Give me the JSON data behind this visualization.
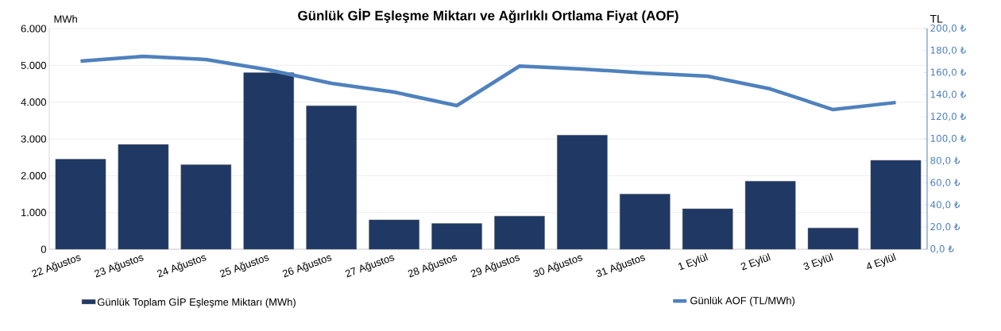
{
  "chart_data": {
    "type": "bar",
    "title": "Günlük GİP Eşleşme Miktarı ve Ağırlıklı Ortlama Fiyat (AOF)",
    "ylabel": "MWh",
    "y2label": "TL",
    "categories": [
      "22 Ağustos",
      "23 Ağustos",
      "24 Ağustos",
      "25 Ağustos",
      "26 Ağustos",
      "27 Ağustos",
      "28 Ağustos",
      "29 Ağustos",
      "30 Ağustos",
      "31 Ağustos",
      "1 Eylül",
      "2 Eylül",
      "3 Eylül",
      "4 Eylül"
    ],
    "series": [
      {
        "name": "Günlük Toplam GİP Eşleşme Miktarı (MWh)",
        "color": "#1f3864",
        "values": [
          2450,
          2850,
          2300,
          4800,
          3900,
          800,
          700,
          900,
          3100,
          1500,
          1100,
          1850,
          580,
          2420
        ]
      },
      {
        "name": "Günlük AOF (TL/MWh)",
        "type": "line",
        "axis": "y2",
        "color": "#4f81bd",
        "values": [
          170.5,
          174.8,
          172,
          162.6,
          150.4,
          142.4,
          130.2,
          166,
          163.3,
          159.7,
          156.8,
          145.3,
          126.6,
          133
        ]
      }
    ],
    "ylim": [
      0,
      6000
    ],
    "yticks": [
      {
        "value": 0,
        "label": "0"
      },
      {
        "value": 1000,
        "label": "1.000"
      },
      {
        "value": 2000,
        "label": "2.000"
      },
      {
        "value": 3000,
        "label": "3.000"
      },
      {
        "value": 4000,
        "label": "4.000"
      },
      {
        "value": 5000,
        "label": "5.000"
      },
      {
        "value": 6000,
        "label": "6.000"
      }
    ],
    "y2lim": [
      0,
      200
    ],
    "y2ticks": [
      {
        "value": 0,
        "label": "0,0 ₺"
      },
      {
        "value": 20,
        "label": "20,0 ₺"
      },
      {
        "value": 40,
        "label": "40,0 ₺"
      },
      {
        "value": 60,
        "label": "60,0 ₺"
      },
      {
        "value": 80,
        "label": "80,0 ₺"
      },
      {
        "value": 100,
        "label": "100,0 ₺"
      },
      {
        "value": 120,
        "label": "120,0 ₺"
      },
      {
        "value": 140,
        "label": "140,0 ₺"
      },
      {
        "value": 160,
        "label": "160,0 ₺"
      },
      {
        "value": 180,
        "label": "180,0 ₺"
      },
      {
        "value": 200,
        "label": "200,0 ₺"
      }
    ],
    "grid": "y",
    "legend": "bottom"
  }
}
